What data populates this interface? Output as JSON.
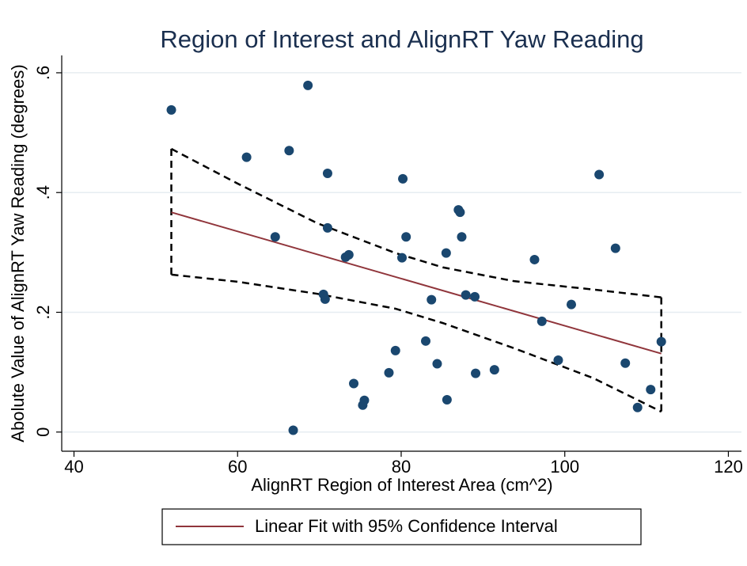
{
  "chart_data": {
    "type": "scatter",
    "title": "Region of Interest and AlignRT Yaw Reading",
    "x_label": "AlignRT Region of Interest Area (cm^2)",
    "y_label": "Abolute Value of AlignRT Yaw Reading (degrees)",
    "xlim": [
      38.5,
      121.6
    ],
    "ylim": [
      -0.032,
      0.629
    ],
    "xticks": [
      40,
      60,
      80,
      100,
      120
    ],
    "yticks": [
      {
        "value": 0,
        "label": "0"
      },
      {
        "value": 0.2,
        "label": ".2"
      },
      {
        "value": 0.4,
        "label": ".4"
      },
      {
        "value": 0.6,
        "label": ".6"
      }
    ],
    "grid": true,
    "legend_position": "bottom",
    "points": {
      "color": "#1a476f",
      "x": [
        51.9,
        68.6,
        61.1,
        66.3,
        71.0,
        80.2,
        104.2,
        64.6,
        71.0,
        87.0,
        87.2,
        80.6,
        87.4,
        73.2,
        73.6,
        80.1,
        85.5,
        96.3,
        106.2,
        70.5,
        70.7,
        83.7,
        87.9,
        89.0,
        100.8,
        97.2,
        111.8,
        83.0,
        79.3,
        99.2,
        107.4,
        84.4,
        78.5,
        89.1,
        91.4,
        74.2,
        110.5,
        75.5,
        75.3,
        85.6,
        108.9,
        66.8
      ],
      "values": [
        0.538,
        0.579,
        0.459,
        0.47,
        0.432,
        0.423,
        0.43,
        0.326,
        0.341,
        0.371,
        0.367,
        0.326,
        0.326,
        0.292,
        0.296,
        0.291,
        0.299,
        0.288,
        0.307,
        0.23,
        0.222,
        0.221,
        0.229,
        0.226,
        0.213,
        0.185,
        0.151,
        0.152,
        0.136,
        0.12,
        0.115,
        0.114,
        0.099,
        0.098,
        0.104,
        0.081,
        0.071,
        0.053,
        0.045,
        0.054,
        0.041,
        0.003
      ]
    },
    "fit": {
      "name": "Linear Fit with 95% Confidence Interval",
      "color": "#90353b",
      "x": [
        51.9,
        111.8
      ],
      "values": [
        0.367,
        0.131
      ]
    },
    "ci": {
      "color": "#000000",
      "x": [
        51.9,
        60.0,
        69.7,
        79.3,
        85.1,
        93.8,
        103.5,
        111.8
      ],
      "upper": [
        0.473,
        0.415,
        0.349,
        0.299,
        0.275,
        0.252,
        0.238,
        0.225
      ],
      "lower": [
        0.263,
        0.251,
        0.231,
        0.206,
        0.182,
        0.14,
        0.09,
        0.034
      ]
    }
  }
}
